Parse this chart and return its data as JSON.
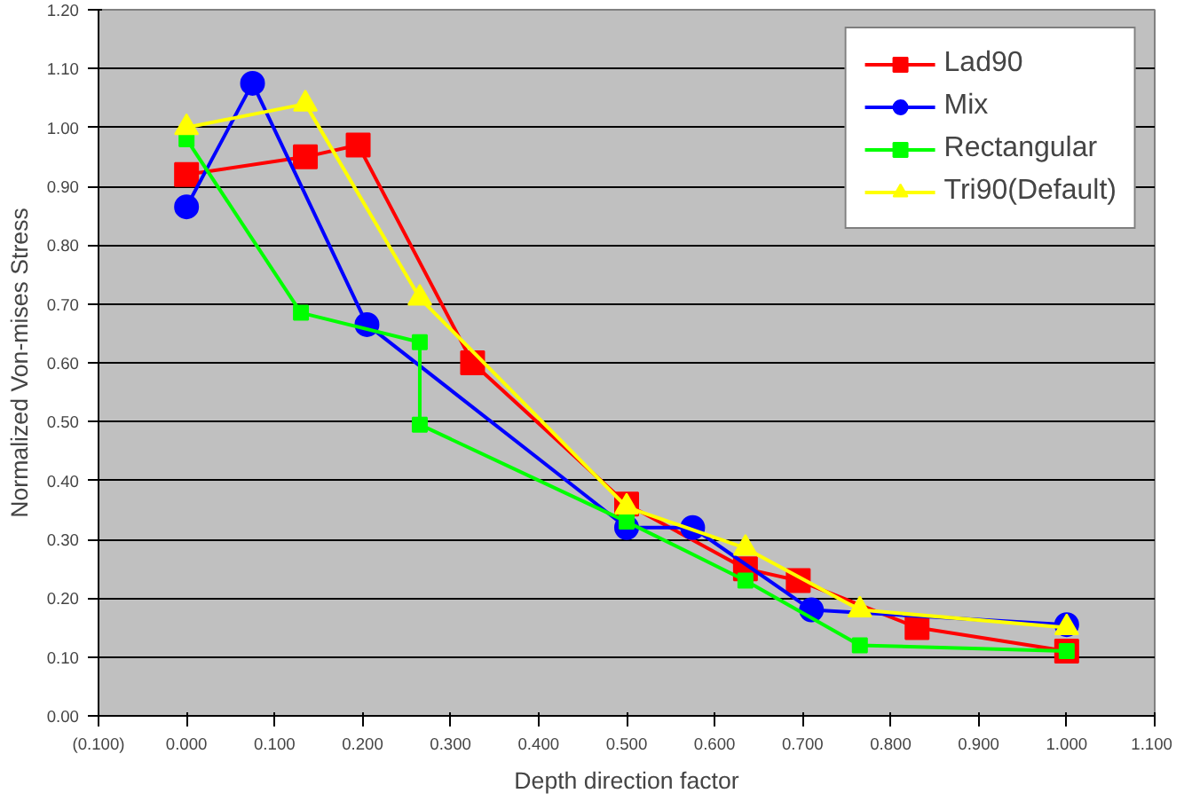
{
  "chart_data": {
    "type": "line",
    "xlabel": "Depth direction factor",
    "ylabel": "Normalized Von-mises Stress",
    "xlim": [
      -0.1,
      1.1
    ],
    "ylim": [
      0,
      1.2
    ],
    "xticks": [
      {
        "value": -0.1,
        "label": "(0.100)"
      },
      {
        "value": 0,
        "label": "0.000"
      },
      {
        "value": 0.1,
        "label": "0.100"
      },
      {
        "value": 0.2,
        "label": "0.200"
      },
      {
        "value": 0.3,
        "label": "0.300"
      },
      {
        "value": 0.4,
        "label": "0.400"
      },
      {
        "value": 0.5,
        "label": "0.500"
      },
      {
        "value": 0.6,
        "label": "0.600"
      },
      {
        "value": 0.7,
        "label": "0.700"
      },
      {
        "value": 0.8,
        "label": "0.800"
      },
      {
        "value": 0.9,
        "label": "0.900"
      },
      {
        "value": 1.0,
        "label": "1.000"
      },
      {
        "value": 1.1,
        "label": "1.100"
      }
    ],
    "yticks": [
      {
        "value": 0,
        "label": "0.00"
      },
      {
        "value": 0.1,
        "label": "0.10"
      },
      {
        "value": 0.2,
        "label": "0.20"
      },
      {
        "value": 0.3,
        "label": "0.30"
      },
      {
        "value": 0.4,
        "label": "0.40"
      },
      {
        "value": 0.5,
        "label": "0.50"
      },
      {
        "value": 0.6,
        "label": "0.60"
      },
      {
        "value": 0.7,
        "label": "0.70"
      },
      {
        "value": 0.8,
        "label": "0.80"
      },
      {
        "value": 0.9,
        "label": "0.90"
      },
      {
        "value": 1.0,
        "label": "1.00"
      },
      {
        "value": 1.1,
        "label": "1.10"
      },
      {
        "value": 1.2,
        "label": "1.20"
      }
    ],
    "grid": "y",
    "legend": "top right",
    "series": [
      {
        "name": "Lad90",
        "color": "#ff0000",
        "marker": "square",
        "x": [
          0.0,
          0.135,
          0.195,
          0.325,
          0.5,
          0.635,
          0.695,
          0.83,
          1.0
        ],
        "values": [
          0.92,
          0.95,
          0.97,
          0.6,
          0.36,
          0.25,
          0.23,
          0.15,
          0.11
        ]
      },
      {
        "name": "Mix",
        "color": "#0000ff",
        "marker": "circle",
        "x": [
          0.0,
          0.075,
          0.205,
          0.5,
          0.575,
          0.71,
          1.0
        ],
        "values": [
          0.865,
          1.075,
          0.665,
          0.32,
          0.32,
          0.18,
          0.155
        ]
      },
      {
        "name": "Rectangular",
        "color": "#00ff00",
        "marker": "square",
        "x": [
          0.0,
          0.13,
          0.265,
          0.265,
          0.5,
          0.635,
          0.765,
          1.0
        ],
        "values": [
          0.98,
          0.685,
          0.635,
          0.495,
          0.33,
          0.23,
          0.12,
          0.11
        ]
      },
      {
        "name": "Tri90(Default)",
        "color": "#ffff00",
        "marker": "triangle",
        "x": [
          0.0,
          0.135,
          0.265,
          0.5,
          0.635,
          0.765,
          1.0
        ],
        "values": [
          1.0,
          1.04,
          0.71,
          0.355,
          0.285,
          0.18,
          0.15
        ]
      }
    ]
  }
}
